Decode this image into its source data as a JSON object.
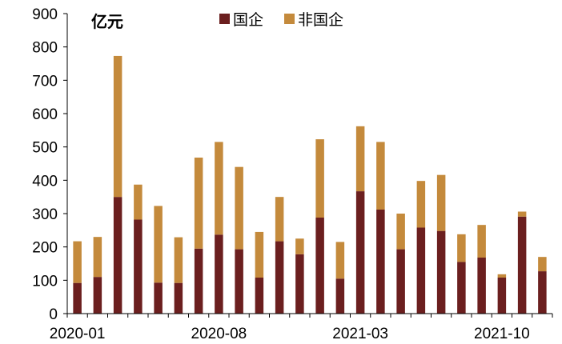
{
  "chart_data": {
    "type": "bar",
    "stacked": true,
    "unit_label": "亿元",
    "ylim": [
      0,
      900
    ],
    "yticks": [
      0,
      100,
      200,
      300,
      400,
      500,
      600,
      700,
      800,
      900
    ],
    "x_tick_labels": [
      {
        "index": 0,
        "label": "2020-01"
      },
      {
        "index": 7,
        "label": "2020-08"
      },
      {
        "index": 14,
        "label": "2021-03"
      },
      {
        "index": 21,
        "label": "2021-10"
      }
    ],
    "categories": [
      "2020-01",
      "2020-02",
      "2020-03",
      "2020-04",
      "2020-05",
      "2020-06",
      "2020-07",
      "2020-08",
      "2020-09",
      "2020-10",
      "2020-11",
      "2020-12",
      "2021-01",
      "2021-02",
      "2021-03",
      "2021-04",
      "2021-05",
      "2021-06",
      "2021-07",
      "2021-08",
      "2021-09",
      "2021-10",
      "2021-11",
      "2021-12"
    ],
    "series": [
      {
        "name": "国企",
        "color": "#6b1f1f",
        "values": [
          92,
          110,
          350,
          282,
          93,
          92,
          195,
          237,
          193,
          108,
          217,
          178,
          288,
          105,
          367,
          312,
          193,
          258,
          248,
          155,
          168,
          108,
          291,
          127
        ]
      },
      {
        "name": "非国企",
        "color": "#c48a3c",
        "values": [
          125,
          120,
          423,
          105,
          230,
          137,
          273,
          278,
          247,
          137,
          133,
          47,
          235,
          110,
          195,
          203,
          107,
          140,
          168,
          83,
          98,
          10,
          15,
          43
        ]
      }
    ],
    "legend_position": "top",
    "grid": false
  }
}
